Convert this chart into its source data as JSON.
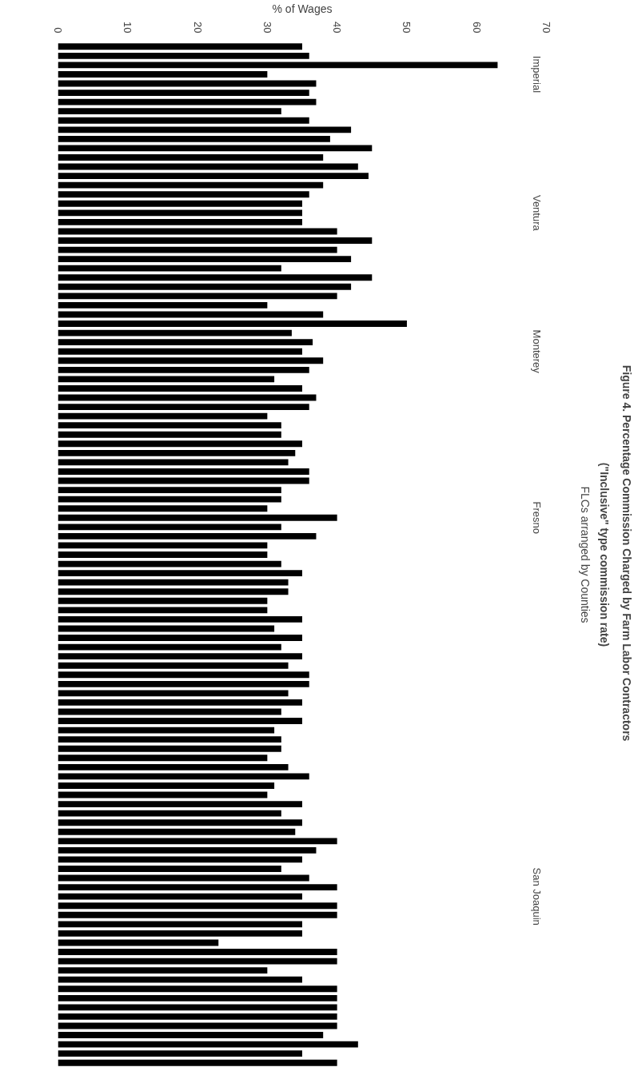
{
  "chart_data": {
    "type": "bar",
    "orientation": "horizontal",
    "title": "Figure 4.  Percentage Commission Charged by Farm Labor Contractors",
    "subtitle": "(\"Inclusive\" type commission rate)",
    "xlabel": "% of Wages",
    "ylabel": "FLCs arranged by Counties",
    "categories": [
      null,
      null,
      null,
      "Imperial",
      null,
      null,
      null,
      null,
      null,
      null,
      null,
      null,
      null,
      null,
      null,
      null,
      null,
      null,
      "Ventura",
      null,
      null,
      null,
      null,
      null,
      null,
      null,
      null,
      null,
      null,
      null,
      null,
      null,
      null,
      "Monterey",
      null,
      null,
      null,
      null,
      null,
      null,
      null,
      null,
      null,
      null,
      null,
      null,
      null,
      null,
      null,
      null,
      null,
      "Fresno",
      null,
      null,
      null,
      null,
      null,
      null,
      null,
      null,
      null,
      null,
      null,
      null,
      null,
      null,
      null,
      null,
      null,
      null,
      null,
      null,
      null,
      null,
      null,
      null,
      null,
      null,
      null,
      null,
      null,
      null,
      null,
      null,
      null,
      null,
      null,
      null,
      null,
      null,
      null,
      null,
      "San Joaquin",
      null,
      null,
      null,
      null,
      null,
      null,
      null,
      null,
      null,
      null,
      null,
      null,
      null,
      null,
      null,
      null,
      null,
      null
    ],
    "values": [
      35,
      36,
      63,
      30,
      37,
      36,
      37,
      32,
      36,
      42,
      39,
      45,
      38,
      43,
      44.5,
      38,
      36,
      35,
      35,
      35,
      40,
      45,
      40,
      42,
      32,
      45,
      42,
      40,
      30,
      38,
      50,
      33.5,
      36.5,
      35,
      38,
      36,
      31,
      35,
      37,
      36,
      30,
      32,
      32,
      35,
      34,
      33,
      36,
      36,
      32,
      32,
      30,
      40,
      32,
      37,
      30,
      30,
      32,
      35,
      33,
      33,
      30,
      30,
      35,
      31,
      35,
      32,
      35,
      33,
      36,
      36,
      33,
      35,
      32,
      35,
      31,
      32,
      32,
      30,
      33,
      36,
      31,
      30,
      35,
      32,
      35,
      34,
      40,
      37,
      35,
      32,
      36,
      40,
      35,
      40,
      40,
      35,
      35,
      23,
      40,
      40,
      30,
      35,
      40,
      40,
      40,
      40,
      40,
      38,
      43,
      35,
      40
    ],
    "color": "#000000",
    "xlim": [
      0,
      70
    ],
    "xticks": [
      0,
      10,
      20,
      30,
      40,
      50,
      60,
      70
    ],
    "grid": false
  }
}
